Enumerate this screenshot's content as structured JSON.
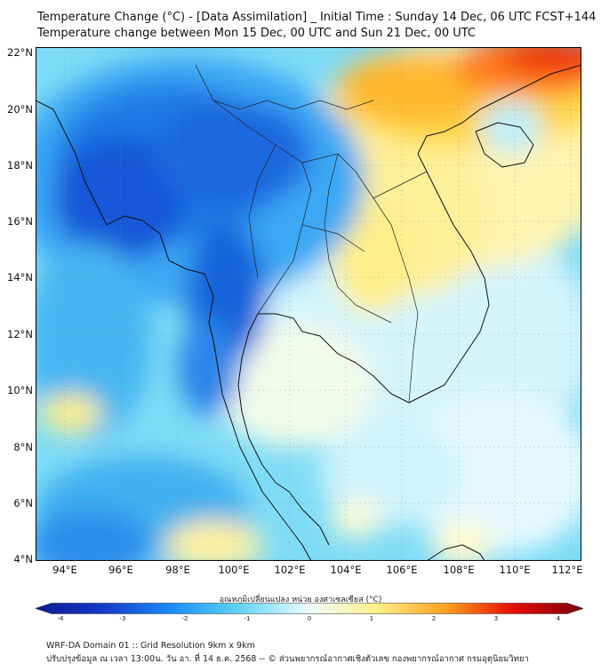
{
  "title": {
    "line1": "Temperature Change (°C) - [Data Assimilation] _ Initial Time : Sunday 14 Dec, 06 UTC FCST+144",
    "line2": "Temperature change between Mon 15 Dec, 00 UTC and Sun 21 Dec, 00 UTC"
  },
  "axes": {
    "lat_labels": [
      "22°N",
      "20°N",
      "18°N",
      "16°N",
      "14°N",
      "12°N",
      "10°N",
      "8°N",
      "6°N",
      "4°N"
    ],
    "lon_labels": [
      "94°E",
      "96°E",
      "98°E",
      "100°E",
      "102°E",
      "104°E",
      "106°E",
      "108°E",
      "110°E",
      "112°E"
    ]
  },
  "colorbar": {
    "label": "อุณหภูมิเปลี่ยนแปลง หน่วย องศาเซลเซียส (°C)",
    "ticks": [
      "-4",
      "-3",
      "-2",
      "-1",
      "0",
      "1",
      "2",
      "3",
      "4"
    ],
    "range": [
      -4,
      4
    ],
    "colors": {
      "deep_blue": "#0a1a8c",
      "mid_blue": "#1a8cff",
      "light_blue": "#5fd4f5",
      "near_zero": "#eefbff",
      "light_yellow": "#ffef8a",
      "orange": "#ffa01e",
      "red": "#e60c00",
      "dark_red": "#7a0010"
    }
  },
  "footer": {
    "line1": "WRF-DA Domain 01 :: Grid Resolution 9km x 9km",
    "line2": "ปรับปรุงข้อมูล ณ เวลา 13:00น. วัน อา. ที่ 14 ธ.ค. 2568 -- © ส่วนพยากรณ์อากาศเชิงตัวเลข กองพยากรณ์อากาศ กรมอุตุนิยมวิทยา"
  }
}
